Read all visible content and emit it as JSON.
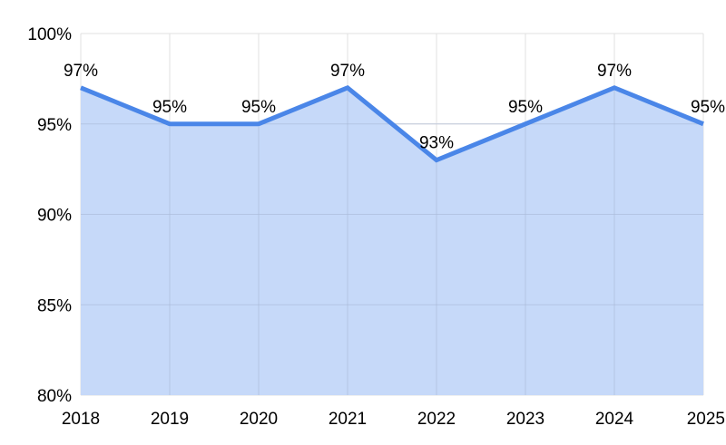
{
  "chart_data": {
    "type": "area",
    "title": "",
    "xlabel": "",
    "ylabel": "",
    "categories": [
      "2018",
      "2019",
      "2020",
      "2021",
      "2022",
      "2023",
      "2024",
      "2025"
    ],
    "series": [
      {
        "values": [
          97,
          95,
          95,
          97,
          93,
          95,
          97,
          95
        ],
        "data_labels": [
          "97%",
          "95%",
          "95%",
          "97%",
          "93%",
          "95%",
          "97%",
          "95%"
        ]
      }
    ],
    "ylim": [
      80,
      100
    ],
    "y_ticks": [
      80,
      85,
      90,
      95,
      100
    ],
    "y_tick_labels": [
      "80%",
      "85%",
      "90%",
      "95%",
      "100%"
    ],
    "grid": true,
    "legend": "none",
    "colors": {
      "line": "#4a86e8",
      "fill": "#c6d9f9"
    }
  }
}
